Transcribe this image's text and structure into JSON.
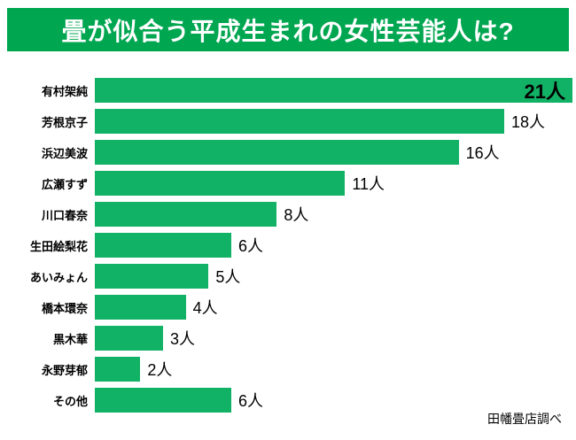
{
  "title": "畳が似合う平成生まれの女性芸能人は?",
  "source": "田幡畳店調べ",
  "colors": {
    "header_bg": "#00A650",
    "bar": "#12B266",
    "text": "#000000",
    "title_text": "#FFFFFF"
  },
  "chart_data": {
    "type": "bar",
    "orientation": "horizontal",
    "title": "畳が似合う平成生まれの女性芸能人は?",
    "categories": [
      "有村架純",
      "芳根京子",
      "浜辺美波",
      "広瀬すず",
      "川口春奈",
      "生田絵梨花",
      "あいみょん",
      "橋本環奈",
      "黒木華",
      "永野芽郁",
      "その他"
    ],
    "values": [
      21,
      18,
      16,
      11,
      8,
      6,
      5,
      4,
      3,
      2,
      6
    ],
    "unit": "人",
    "value_labels": [
      "21人",
      "18人",
      "16人",
      "11人",
      "8人",
      "6人",
      "5人",
      "4人",
      "3人",
      "2人",
      "6人"
    ],
    "xlim": [
      0,
      21
    ],
    "grid": false,
    "legend": "none",
    "bar_color": "#12B266",
    "annotation": "田幡畳店調べ"
  }
}
